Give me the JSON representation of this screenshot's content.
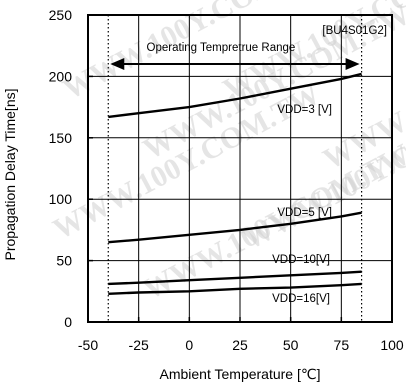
{
  "chart_data": {
    "type": "line",
    "title": "",
    "xlabel": "Ambient Temperature [℃]",
    "ylabel": "Propagation Delay Time[ns]",
    "xlim": [
      -50,
      100
    ],
    "ylim": [
      0,
      250
    ],
    "xticks": [
      -50,
      -25,
      0,
      25,
      50,
      75,
      100
    ],
    "yticks": [
      0,
      50,
      100,
      150,
      200,
      250
    ],
    "grid": true,
    "part_number": "[BU4S01G2]",
    "range_label": "Operating Tempretrue Range",
    "range_limits": [
      -40,
      85
    ],
    "series": [
      {
        "name": "VDD=3 [V]",
        "x": [
          -40,
          -25,
          0,
          25,
          50,
          75,
          85
        ],
        "y": [
          167,
          170,
          175,
          182,
          190,
          198,
          202
        ]
      },
      {
        "name": "VDD=5 [V]",
        "x": [
          -40,
          -25,
          0,
          25,
          50,
          75,
          85
        ],
        "y": [
          65,
          67,
          71,
          75,
          80,
          86,
          89
        ]
      },
      {
        "name": "VDD=10[V]",
        "x": [
          -40,
          -25,
          0,
          25,
          50,
          75,
          85
        ],
        "y": [
          31,
          32,
          34,
          36,
          38,
          40,
          41
        ]
      },
      {
        "name": "VDD=16[V]",
        "x": [
          -40,
          -25,
          0,
          25,
          50,
          75,
          85
        ],
        "y": [
          23,
          24,
          25,
          27,
          28,
          30,
          31
        ]
      }
    ]
  },
  "watermark_text": "WWW.100Y.COM.TW"
}
